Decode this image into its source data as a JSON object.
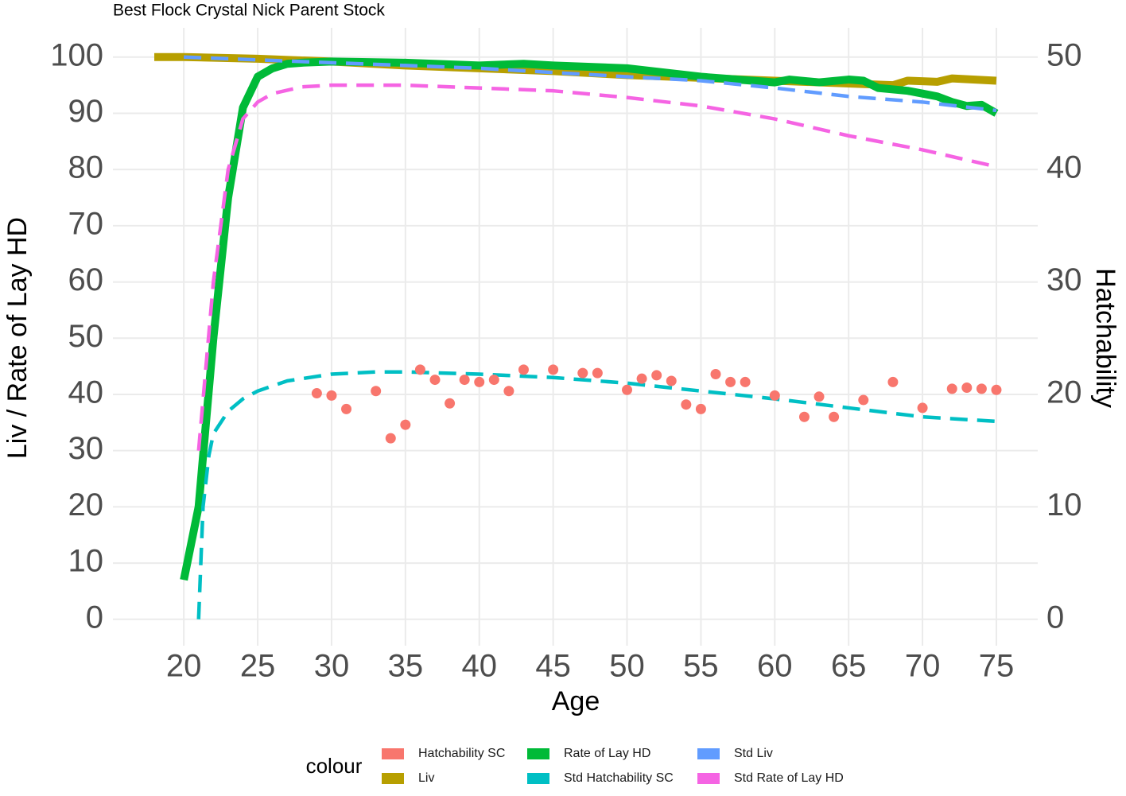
{
  "chart_data": {
    "type": "line",
    "title": "Best Flock Crystal Nick Parent Stock",
    "x_label": "Age",
    "y_label": "Liv / Rate of Lay HD",
    "y2_label": "Hatchability",
    "legend_title": "colour",
    "legend": "bottom",
    "grid": true,
    "xlim": [
      15.2,
      77.8
    ],
    "xticks": [
      20,
      25,
      30,
      35,
      40,
      45,
      50,
      55,
      60,
      65,
      70,
      75
    ],
    "ylim": [
      -4.7,
      105.2
    ],
    "yticks": [
      0,
      10,
      20,
      30,
      40,
      50,
      60,
      70,
      80,
      90,
      100
    ],
    "y2lim": [
      -2.35,
      52.6
    ],
    "y2ticks": [
      0,
      10,
      20,
      30,
      40,
      50
    ],
    "series": [
      {
        "name": "Hatchability SC",
        "color": "#F8766D",
        "type": "scatter",
        "axis": "y2",
        "x": [
          29,
          30,
          31,
          33,
          34,
          35,
          36,
          37,
          38,
          39,
          40,
          41,
          42,
          43,
          45,
          47,
          48,
          50,
          51,
          52,
          53,
          54,
          55,
          56,
          57,
          58,
          60,
          62,
          63,
          64,
          66,
          68,
          70,
          72,
          73,
          74,
          75
        ],
        "values": [
          20.1,
          19.9,
          18.7,
          20.3,
          16.1,
          17.3,
          22.2,
          21.3,
          19.2,
          21.3,
          21.1,
          21.3,
          20.3,
          22.2,
          22.2,
          21.9,
          21.9,
          20.4,
          21.4,
          21.7,
          21.2,
          19.1,
          18.7,
          21.8,
          21.1,
          21.1,
          19.9,
          18.0,
          19.8,
          18.0,
          19.5,
          21.1,
          18.8,
          20.5,
          20.6,
          20.5,
          20.4
        ]
      },
      {
        "name": "Liv",
        "color": "#B79F00",
        "type": "line",
        "dashed": false,
        "x": [
          18,
          20,
          25,
          30,
          35,
          40,
          45,
          50,
          55,
          60,
          65,
          68,
          69,
          71,
          72,
          75
        ],
        "values": [
          100,
          100,
          99.7,
          99.2,
          98.5,
          98,
          97.5,
          96.8,
          96.3,
          95.8,
          95.3,
          95,
          95.8,
          95.6,
          96.2,
          95.8
        ]
      },
      {
        "name": "Rate of Lay HD",
        "color": "#00BA38",
        "type": "line",
        "dashed": false,
        "x": [
          20,
          21,
          22,
          23,
          24,
          25,
          26,
          27,
          28,
          30,
          35,
          40,
          43,
          45,
          50,
          55,
          60,
          61,
          63,
          65,
          66,
          67,
          69,
          70,
          71,
          72,
          73,
          74,
          75
        ],
        "values": [
          7,
          20,
          50,
          75,
          91,
          96.5,
          98,
          98.8,
          99,
          99.2,
          99,
          98.5,
          98.8,
          98.5,
          98,
          96.5,
          95.5,
          96,
          95.5,
          96,
          95.8,
          94.5,
          94,
          93.5,
          93,
          92,
          91.3,
          91.5,
          90
        ]
      },
      {
        "name": "Std Hatchability SC",
        "color": "#00BFC4",
        "type": "line",
        "dashed": true,
        "axis": "y2",
        "x": [
          21,
          21.3,
          21.7,
          22,
          23,
          24,
          25,
          27,
          30,
          33,
          35,
          40,
          45,
          50,
          55,
          60,
          65,
          70,
          75
        ],
        "values": [
          0,
          10,
          14.6,
          16.5,
          18.5,
          19.6,
          20.3,
          21.2,
          21.8,
          22,
          22,
          21.8,
          21.5,
          21,
          20.3,
          19.6,
          18.8,
          18,
          17.6
        ]
      },
      {
        "name": "Std Liv",
        "color": "#619CFF",
        "type": "line",
        "dashed": true,
        "x": [
          20,
          25,
          30,
          40,
          50,
          55,
          60,
          65,
          70,
          75
        ],
        "values": [
          100,
          99.5,
          99,
          98,
          96.5,
          95.8,
          94.5,
          93,
          92,
          90.5
        ]
      },
      {
        "name": "Std Rate of Lay HD",
        "color": "#F564E3",
        "type": "line",
        "dashed": true,
        "x": [
          21,
          22,
          23,
          24,
          25,
          26,
          28,
          30,
          35,
          40,
          45,
          50,
          55,
          60,
          65,
          70,
          75
        ],
        "values": [
          30,
          60,
          80,
          89,
          92,
          93.5,
          94.7,
          95,
          95,
          94.5,
          94,
          92.8,
          91.3,
          89,
          86,
          83.5,
          80.5
        ]
      }
    ]
  }
}
